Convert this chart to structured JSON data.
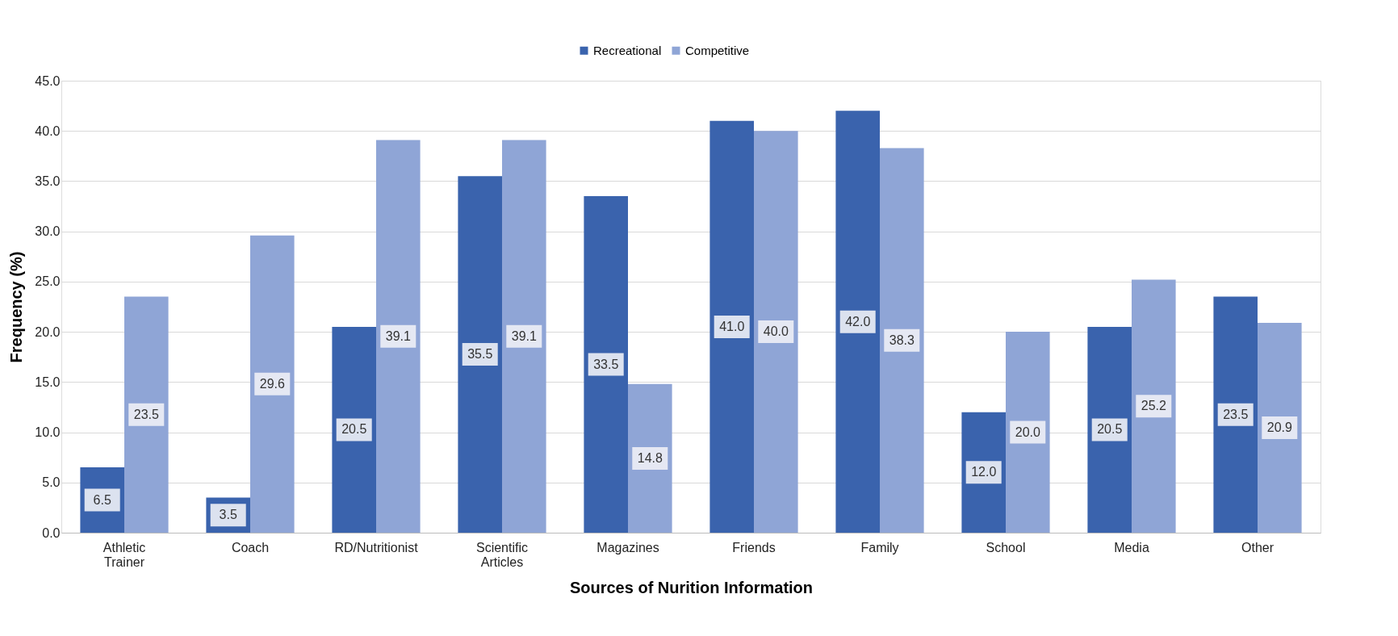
{
  "chart_data": {
    "type": "bar",
    "xlabel": "Sources of Nurition Information",
    "ylabel": "Frequency (%)",
    "categories": [
      "Athletic Trainer",
      "Coach",
      "RD/Nutritionist",
      "Scientific Articles",
      "Magazines",
      "Friends",
      "Family",
      "School",
      "Media",
      "Other"
    ],
    "series": [
      {
        "name": "Recreational",
        "color": "#3a63ad",
        "values": [
          6.5,
          3.5,
          20.5,
          35.5,
          33.5,
          41,
          42,
          12,
          20.5,
          23.5
        ],
        "value_labels": [
          "6.5",
          "3.5",
          "20.5",
          "35.5",
          "33.5",
          "41.0",
          "42.0",
          "12.0",
          "20.5",
          "23.5"
        ]
      },
      {
        "name": "Competitive",
        "color": "#8fa5d6",
        "values": [
          23.5,
          29.6,
          39.1,
          39.1,
          14.8,
          40,
          38.3,
          20,
          25.2,
          20.9
        ],
        "value_labels": [
          "23.5",
          "29.6",
          "39.1",
          "39.1",
          "14.8",
          "40.0",
          "38.3",
          "20.0",
          "25.2",
          "20.9"
        ]
      }
    ],
    "ylim": [
      0,
      45
    ],
    "yticks": [
      {
        "value": 0,
        "label": "0.0"
      },
      {
        "value": 5,
        "label": "5.0"
      },
      {
        "value": 10,
        "label": "10.0"
      },
      {
        "value": 15,
        "label": "15.0"
      },
      {
        "value": 20,
        "label": "20.0"
      },
      {
        "value": 25,
        "label": "25.0"
      },
      {
        "value": 30,
        "label": "30.0"
      },
      {
        "value": 35,
        "label": "35.0"
      },
      {
        "value": 40,
        "label": "40.0"
      },
      {
        "value": 45,
        "label": "45.0"
      }
    ],
    "grid": "y",
    "legend": "top"
  }
}
